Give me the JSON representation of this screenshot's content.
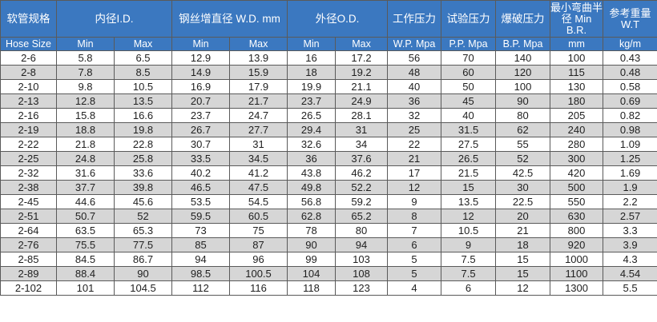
{
  "table": {
    "header_top": {
      "size": "软管规格",
      "id": "内径I.D.",
      "wd": "钢丝增直径 W.D. mm",
      "od": "外径O.D.",
      "wp": "工作压力",
      "pp": "试验压力",
      "bp": "爆破压力",
      "br": "最小弯曲半径 Min B.R.",
      "wt": "参考重量 W.T"
    },
    "header_sub": [
      "Hose Size",
      "Min",
      "Max",
      "Min",
      "Max",
      "Min",
      "Max",
      "W.P. Mpa",
      "P.P. Mpa",
      "B.P. Mpa",
      "mm",
      "kg/m"
    ],
    "rows": [
      [
        "2-6",
        "5.8",
        "6.5",
        "12.9",
        "13.9",
        "16",
        "17.2",
        "56",
        "70",
        "140",
        "100",
        "0.43"
      ],
      [
        "2-8",
        "7.8",
        "8.5",
        "14.9",
        "15.9",
        "18",
        "19.2",
        "48",
        "60",
        "120",
        "115",
        "0.48"
      ],
      [
        "2-10",
        "9.8",
        "10.5",
        "16.9",
        "17.9",
        "19.9",
        "21.1",
        "40",
        "50",
        "100",
        "130",
        "0.58"
      ],
      [
        "2-13",
        "12.8",
        "13.5",
        "20.7",
        "21.7",
        "23.7",
        "24.9",
        "36",
        "45",
        "90",
        "180",
        "0.69"
      ],
      [
        "2-16",
        "15.8",
        "16.6",
        "23.7",
        "24.7",
        "26.5",
        "28.1",
        "32",
        "40",
        "80",
        "205",
        "0.82"
      ],
      [
        "2-19",
        "18.8",
        "19.8",
        "26.7",
        "27.7",
        "29.4",
        "31",
        "25",
        "31.5",
        "62",
        "240",
        "0.98"
      ],
      [
        "2-22",
        "21.8",
        "22.8",
        "30.7",
        "31",
        "32.6",
        "34",
        "22",
        "27.5",
        "55",
        "280",
        "1.09"
      ],
      [
        "2-25",
        "24.8",
        "25.8",
        "33.5",
        "34.5",
        "36",
        "37.6",
        "21",
        "26.5",
        "52",
        "300",
        "1.25"
      ],
      [
        "2-32",
        "31.6",
        "33.6",
        "40.2",
        "41.2",
        "43.8",
        "46.2",
        "17",
        "21.5",
        "42.5",
        "420",
        "1.69"
      ],
      [
        "2-38",
        "37.7",
        "39.8",
        "46.5",
        "47.5",
        "49.8",
        "52.2",
        "12",
        "15",
        "30",
        "500",
        "1.9"
      ],
      [
        "2-45",
        "44.6",
        "45.6",
        "53.5",
        "54.5",
        "56.8",
        "59.2",
        "9",
        "13.5",
        "22.5",
        "550",
        "2.2"
      ],
      [
        "2-51",
        "50.7",
        "52",
        "59.5",
        "60.5",
        "62.8",
        "65.2",
        "8",
        "12",
        "20",
        "630",
        "2.57"
      ],
      [
        "2-64",
        "63.5",
        "65.3",
        "73",
        "75",
        "78",
        "80",
        "7",
        "10.5",
        "21",
        "800",
        "3.3"
      ],
      [
        "2-76",
        "75.5",
        "77.5",
        "85",
        "87",
        "90",
        "94",
        "6",
        "9",
        "18",
        "920",
        "3.9"
      ],
      [
        "2-85",
        "84.5",
        "86.7",
        "94",
        "96",
        "99",
        "103",
        "5",
        "7.5",
        "15",
        "1000",
        "4.3"
      ],
      [
        "2-89",
        "88.4",
        "90",
        "98.5",
        "100.5",
        "104",
        "108",
        "5",
        "7.5",
        "15",
        "1100",
        "4.54"
      ],
      [
        "2-102",
        "101",
        "104.5",
        "112",
        "116",
        "118",
        "123",
        "4",
        "6",
        "12",
        "1300",
        "5.5"
      ]
    ]
  }
}
